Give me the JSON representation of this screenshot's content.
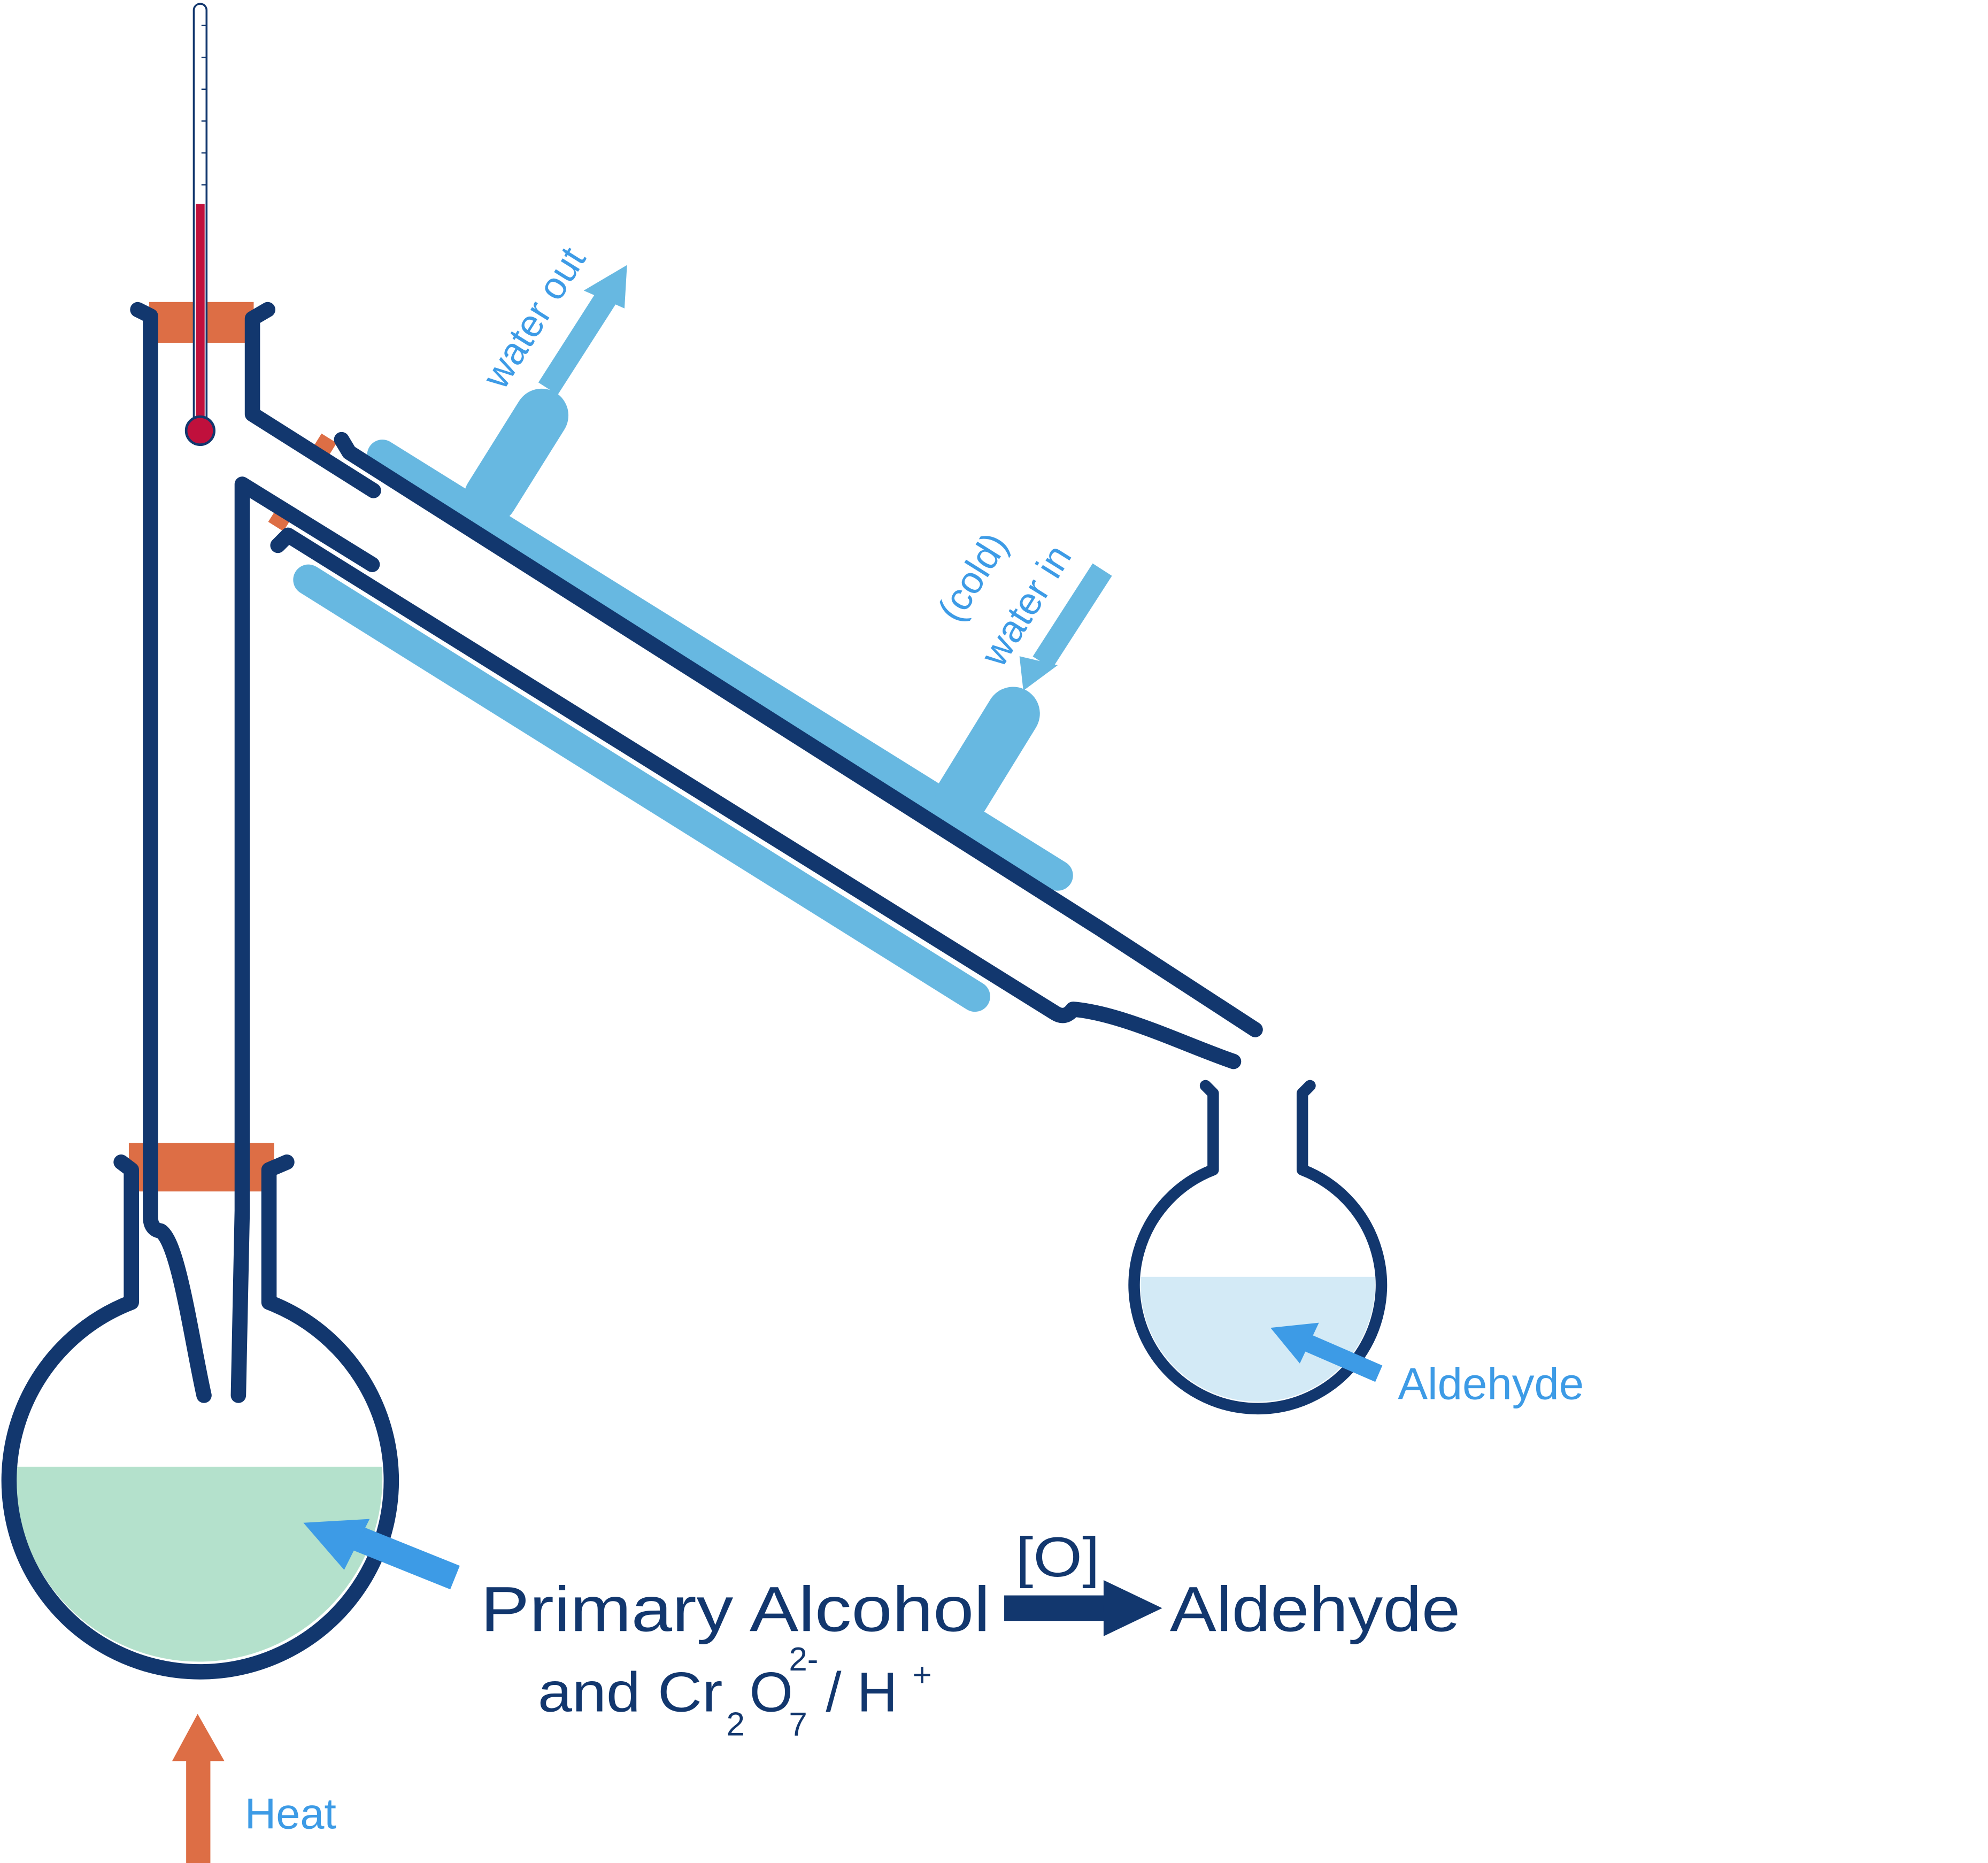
{
  "labels": {
    "water_out": "water out",
    "cold": "(cold)",
    "water_in": "water in",
    "aldehyde_flask": "Aldehyde",
    "heat": "Heat"
  },
  "equation": {
    "reactant": "Primary Alcohol",
    "reagent_prefix": "and Cr",
    "reagent_sub1": "2",
    "reagent_o": "O",
    "reagent_sub2": "7",
    "reagent_sup": "2-",
    "reagent_suffix": "/ H",
    "reagent_sup2": "+",
    "condition": "[O]",
    "product": "Aldehyde"
  },
  "colors": {
    "glass": "#12376e",
    "condenser_jacket": "#67b8e1",
    "stopper": "#dd6e45",
    "label_arrow": "#3d9be6",
    "reaction_mixture": "#b4e1cc",
    "distillate": "#d3eaf6",
    "thermometer_liquid": "#c0103c"
  }
}
